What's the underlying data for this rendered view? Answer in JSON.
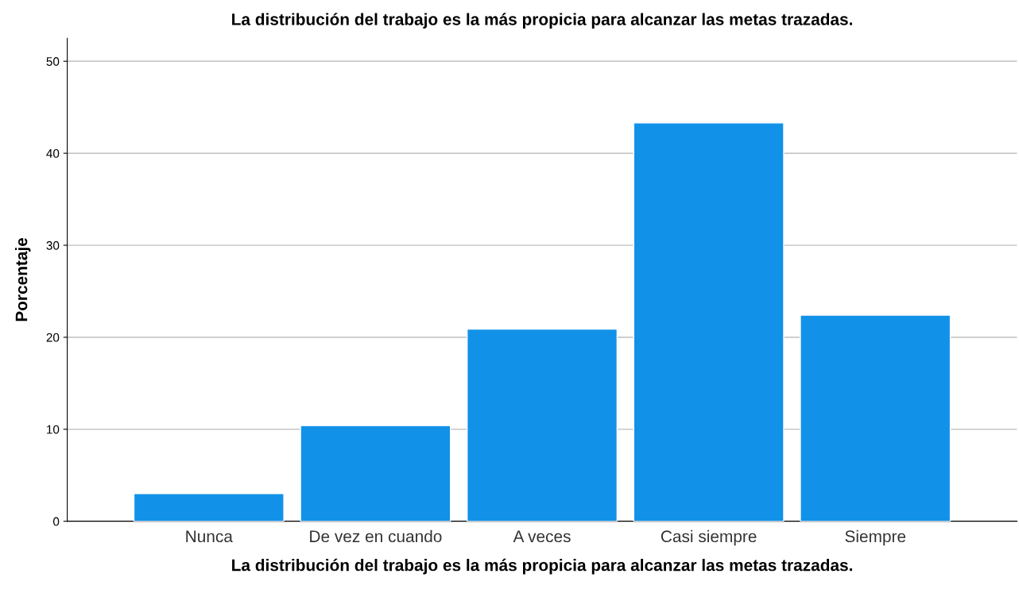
{
  "chart_data": {
    "type": "bar",
    "title": "La distribución del trabajo es la más propicia para alcanzar las metas trazadas.",
    "xlabel": "La distribución del trabajo es la más propicia para alcanzar las metas trazadas.",
    "ylabel": "Porcentaje",
    "categories": [
      "Nunca",
      "De vez en cuando",
      "A veces",
      "Casi siempre",
      "Siempre"
    ],
    "values": [
      3.0,
      10.4,
      20.9,
      43.3,
      22.4
    ],
    "color": "#1192e8",
    "ylim": [
      0,
      52.5
    ],
    "yticks": [
      0,
      10,
      20,
      30,
      40,
      50
    ],
    "grid": "y"
  }
}
